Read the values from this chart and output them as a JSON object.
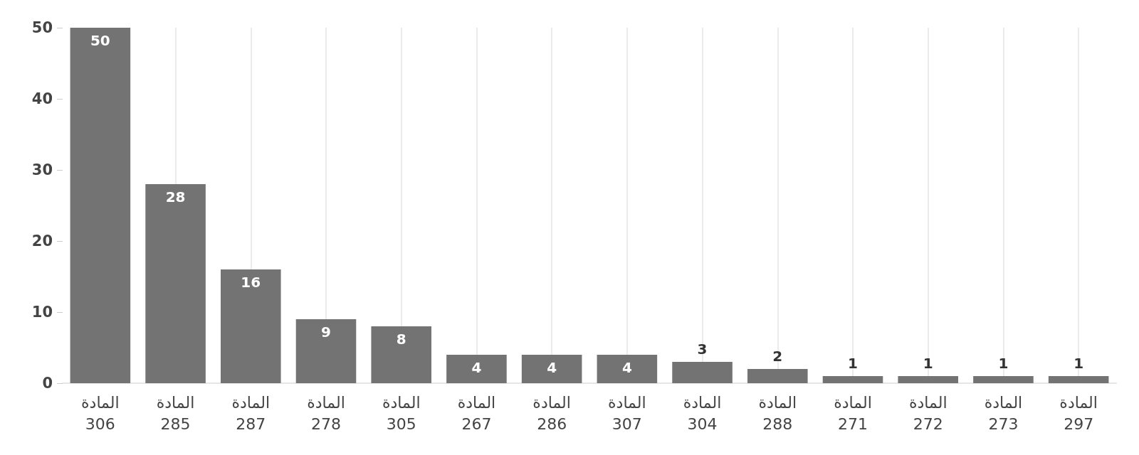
{
  "chart_data": {
    "type": "bar",
    "categories": [
      "المادة\n306",
      "المادة\n285",
      "المادة\n287",
      "المادة\n278",
      "المادة\n305",
      "المادة\n267",
      "المادة\n286",
      "المادة\n307",
      "المادة\n304",
      "المادة\n288",
      "المادة\n271",
      "المادة\n272",
      "المادة\n273",
      "المادة\n297"
    ],
    "values": [
      50,
      28,
      16,
      9,
      8,
      4,
      4,
      4,
      3,
      2,
      1,
      1,
      1,
      1
    ],
    "color": "#737373",
    "ylim": [
      0,
      50
    ],
    "yticks": [
      0,
      10,
      20,
      30,
      40,
      50
    ],
    "grid": "x",
    "data_labels": true
  }
}
